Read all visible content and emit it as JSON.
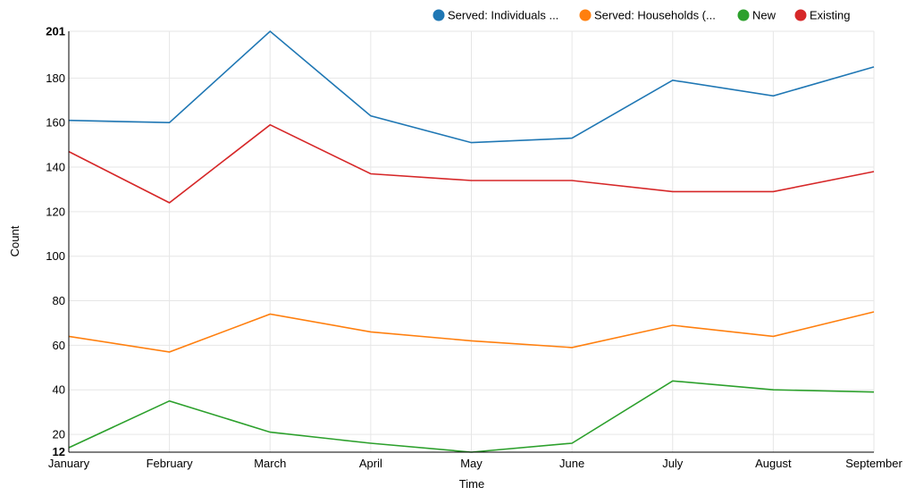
{
  "chart_data": {
    "type": "line",
    "xlabel": "Time",
    "ylabel": "Count",
    "categories": [
      "January",
      "February",
      "March",
      "April",
      "May",
      "June",
      "July",
      "August",
      "September"
    ],
    "ylim": [
      12,
      201
    ],
    "yticks": [
      20,
      40,
      60,
      80,
      100,
      120,
      140,
      160,
      180
    ],
    "ymin_label": "12",
    "ymax_label": "201",
    "grid": true,
    "legend_position": "top-right",
    "series": [
      {
        "name": "Served: Individuals ...",
        "color": "#1f77b4",
        "values": [
          161,
          160,
          201,
          163,
          151,
          153,
          179,
          172,
          185
        ]
      },
      {
        "name": "Served: Households (...",
        "color": "#ff7f0e",
        "values": [
          64,
          57,
          74,
          66,
          62,
          59,
          69,
          64,
          75
        ]
      },
      {
        "name": "New",
        "color": "#2ca02c",
        "values": [
          14,
          35,
          21,
          16,
          12,
          16,
          44,
          40,
          39
        ]
      },
      {
        "name": "Existing",
        "color": "#d62728",
        "values": [
          147,
          124,
          159,
          137,
          134,
          134,
          129,
          129,
          138
        ]
      }
    ]
  }
}
